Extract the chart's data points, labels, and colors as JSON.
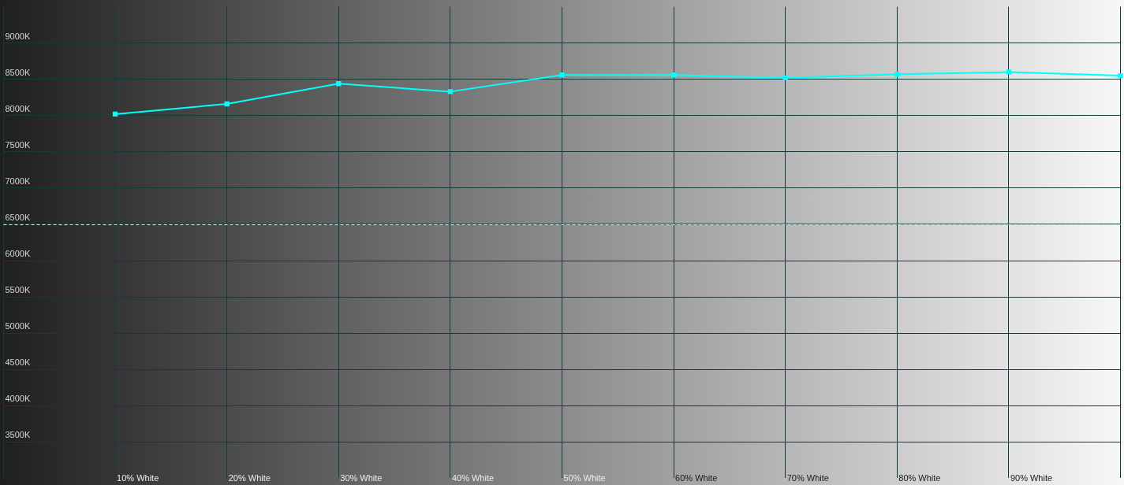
{
  "chart_data": {
    "type": "line",
    "categories": [
      null,
      "10% White",
      "20% White",
      "30% White",
      "40% White",
      "50% White",
      "60% White",
      "70% White",
      "80% White",
      "90% White",
      null
    ],
    "values": [
      null,
      8020,
      8160,
      8440,
      8330,
      8560,
      8560,
      8520,
      8570,
      8600,
      8550
    ],
    "color": "#00ffff",
    "marker": "square",
    "ylim": [
      3000,
      9500
    ],
    "yticks": [
      {
        "value": 3500,
        "label": "3500K"
      },
      {
        "value": 4000,
        "label": "4000K"
      },
      {
        "value": 4500,
        "label": "4500K"
      },
      {
        "value": 5000,
        "label": "5000K"
      },
      {
        "value": 5500,
        "label": "5500K"
      },
      {
        "value": 6000,
        "label": "6000K"
      },
      {
        "value": 6500,
        "label": "6500K"
      },
      {
        "value": 7000,
        "label": "7000K"
      },
      {
        "value": 7500,
        "label": "7500K"
      },
      {
        "value": 8000,
        "label": "8000K"
      },
      {
        "value": 8500,
        "label": "8500K"
      },
      {
        "value": 9000,
        "label": "9000K"
      }
    ],
    "grid": true,
    "ref_lines": [
      {
        "axis": "y",
        "value": 6500,
        "color": "#ffffff",
        "line_style": "dashed"
      }
    ]
  }
}
